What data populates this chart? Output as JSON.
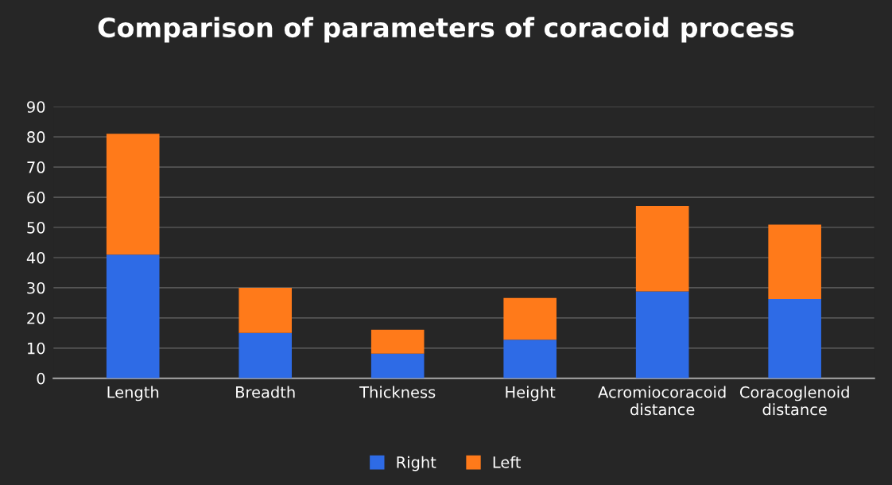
{
  "chart_data": {
    "type": "bar",
    "stacked": true,
    "title": "Comparison of parameters of coracoid process",
    "categories": [
      "Length",
      "Breadth",
      "Thickness",
      "Height",
      "Acromiocoracoid distance",
      "Coracoglenoid distance"
    ],
    "series": [
      {
        "name": "Right",
        "color": "#2e6be6",
        "values": [
          41,
          15,
          8.2,
          12.8,
          28.8,
          26.3
        ]
      },
      {
        "name": "Left",
        "color": "#ff7a1a",
        "values": [
          40,
          15,
          7.9,
          13.8,
          28.3,
          24.6
        ]
      }
    ],
    "ylim": [
      0,
      90
    ],
    "yticks": [
      0,
      10,
      20,
      30,
      40,
      50,
      60,
      70,
      80,
      90
    ],
    "grid": "y",
    "legend": "bottom"
  }
}
